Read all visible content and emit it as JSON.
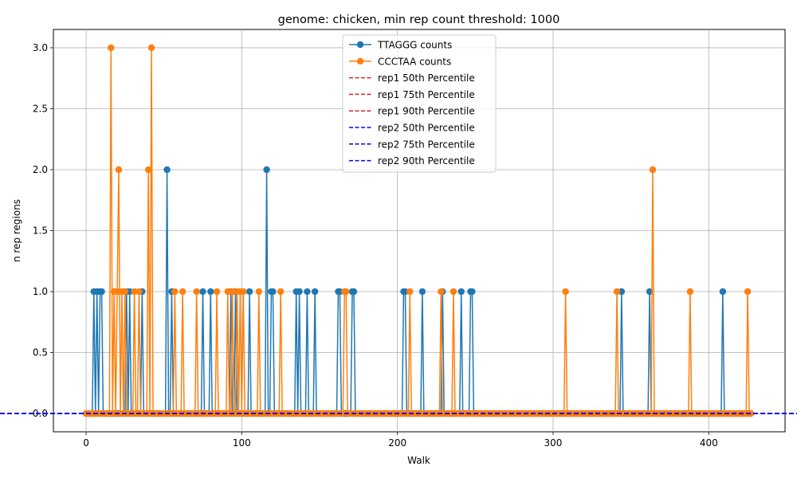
{
  "chart_data": {
    "type": "line",
    "title": "genome: chicken, min rep count threshold: 1000",
    "xlabel": "Walk",
    "ylabel": "n rep regions",
    "xlim": [
      -21,
      449
    ],
    "ylim": [
      -0.15,
      3.15
    ],
    "xticks": [
      0,
      100,
      200,
      300,
      400
    ],
    "yticks": [
      0.0,
      0.5,
      1.0,
      1.5,
      2.0,
      2.5,
      3.0
    ],
    "xtick_labels": [
      "0",
      "100",
      "200",
      "300",
      "400"
    ],
    "ytick_labels": [
      "0.0",
      "0.5",
      "1.0",
      "1.5",
      "2.0",
      "2.5",
      "3.0"
    ],
    "grid": true,
    "legend_position": "top-center",
    "n_walks": 428,
    "series": [
      {
        "name": "TTAGGG counts",
        "color": "#1f77b4",
        "nonzero": [
          [
            5,
            1
          ],
          [
            7,
            1
          ],
          [
            9,
            1
          ],
          [
            10,
            1
          ],
          [
            26,
            1
          ],
          [
            28,
            1
          ],
          [
            36,
            1
          ],
          [
            52,
            2
          ],
          [
            55,
            1
          ],
          [
            75,
            1
          ],
          [
            80,
            1
          ],
          [
            93,
            1
          ],
          [
            96,
            1
          ],
          [
            105,
            1
          ],
          [
            116,
            2
          ],
          [
            119,
            1
          ],
          [
            120,
            1
          ],
          [
            135,
            1
          ],
          [
            137,
            1
          ],
          [
            142,
            1
          ],
          [
            147,
            1
          ],
          [
            162,
            1
          ],
          [
            163,
            1
          ],
          [
            171,
            1
          ],
          [
            172,
            1
          ],
          [
            204,
            1
          ],
          [
            205,
            1
          ],
          [
            216,
            1
          ],
          [
            229,
            1
          ],
          [
            241,
            1
          ],
          [
            247,
            1
          ],
          [
            248,
            1
          ],
          [
            344,
            1
          ],
          [
            362,
            1
          ],
          [
            409,
            1
          ]
        ]
      },
      {
        "name": "CCCTAA counts",
        "color": "#ff7f0e",
        "nonzero": [
          [
            16,
            3
          ],
          [
            18,
            1
          ],
          [
            20,
            1
          ],
          [
            21,
            2
          ],
          [
            23,
            1
          ],
          [
            25,
            1
          ],
          [
            31,
            1
          ],
          [
            34,
            1
          ],
          [
            40,
            2
          ],
          [
            42,
            3
          ],
          [
            57,
            1
          ],
          [
            62,
            1
          ],
          [
            71,
            1
          ],
          [
            84,
            1
          ],
          [
            91,
            1
          ],
          [
            94,
            1
          ],
          [
            97,
            1
          ],
          [
            99,
            1
          ],
          [
            101,
            1
          ],
          [
            111,
            1
          ],
          [
            125,
            1
          ],
          [
            166,
            1
          ],
          [
            167,
            1
          ],
          [
            208,
            1
          ],
          [
            228,
            1
          ],
          [
            236,
            1
          ],
          [
            308,
            1
          ],
          [
            341,
            1
          ],
          [
            364,
            2
          ],
          [
            388,
            1
          ],
          [
            425,
            1
          ]
        ]
      }
    ],
    "reference_lines": [
      {
        "name": "rep1 50th Percentile",
        "value": 0,
        "color": "#d62728",
        "style": "dashed"
      },
      {
        "name": "rep1 75th Percentile",
        "value": 0,
        "color": "#d62728",
        "style": "dashed"
      },
      {
        "name": "rep1 90th Percentile",
        "value": 0,
        "color": "#d62728",
        "style": "dashed"
      },
      {
        "name": "rep2 50th Percentile",
        "value": 0,
        "color": "#0000ff",
        "style": "dashed"
      },
      {
        "name": "rep2 75th Percentile",
        "value": 0,
        "color": "#0000ff",
        "style": "dashed"
      },
      {
        "name": "rep2 90th Percentile",
        "value": 0,
        "color": "#0000ff",
        "style": "dashed"
      }
    ]
  }
}
